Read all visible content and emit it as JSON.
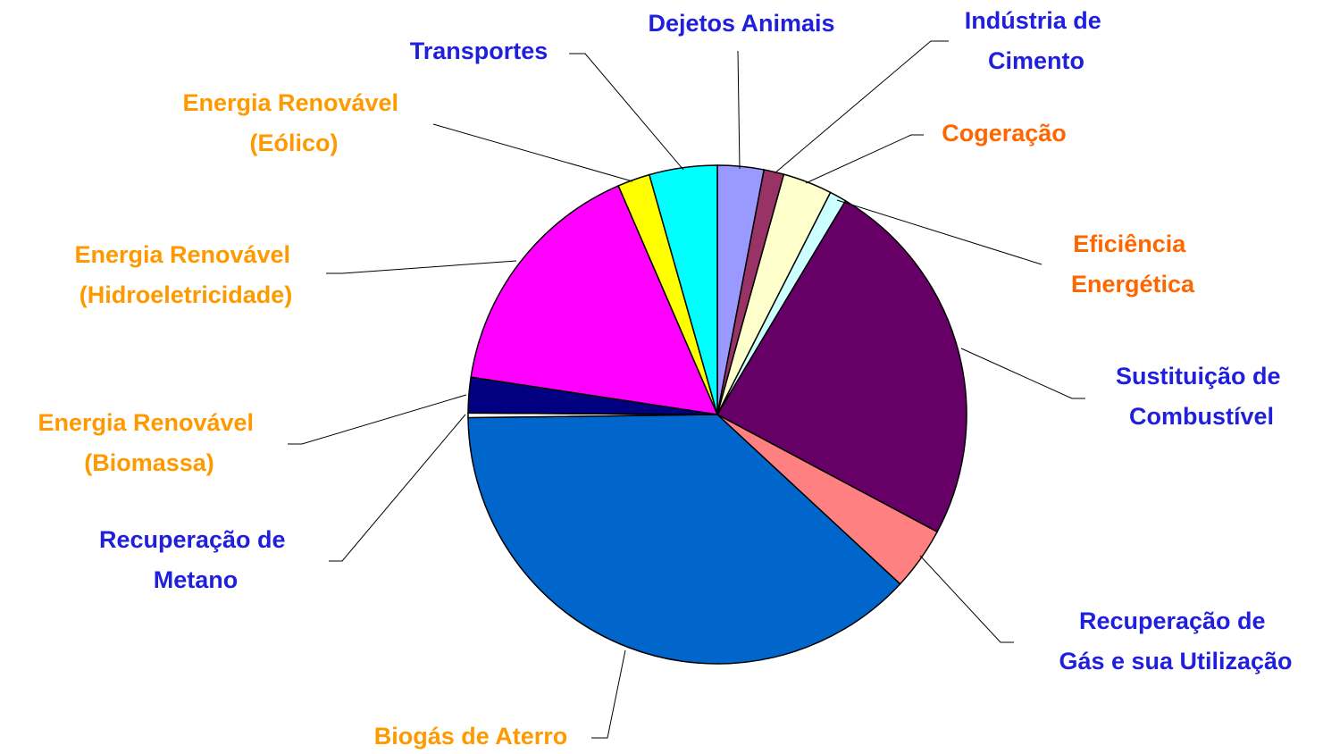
{
  "chart_data": {
    "type": "pie",
    "categories": [
      "Dejetos Animais",
      "Indústria de Cimento",
      "Cogeração",
      "Eficiência Energética",
      "Sustituição de Combustível",
      "Recuperação de Gás e sua Utilização",
      "Biogás de Aterro",
      "Recuperação de Metano",
      "Energia Renovável (Biomassa)",
      "Energia Renovável (Hidroeletricidade)",
      "Energia Renovável (Eólico)",
      "Transportes"
    ],
    "values": [
      3.0,
      1.3,
      3.2,
      1.1,
      24.2,
      4.1,
      37.9,
      0.3,
      2.3,
      16.1,
      2.1,
      4.4
    ],
    "colors": [
      "#9999ff",
      "#993366",
      "#ffffcc",
      "#ccffff",
      "#660066",
      "#ff8080",
      "#0066cc",
      "#ffffff",
      "#000080",
      "#ff00ff",
      "#ffff00",
      "#00ffff"
    ],
    "label_colors": [
      "#1f1fdd",
      "#1f1fdd",
      "#ff6600",
      "#ff6600",
      "#1f1fdd",
      "#1f1fdd",
      "#ff9900",
      "#1f1fdd",
      "#ff9900",
      "#ff9900",
      "#ff9900",
      "#1f1fdd"
    ]
  }
}
